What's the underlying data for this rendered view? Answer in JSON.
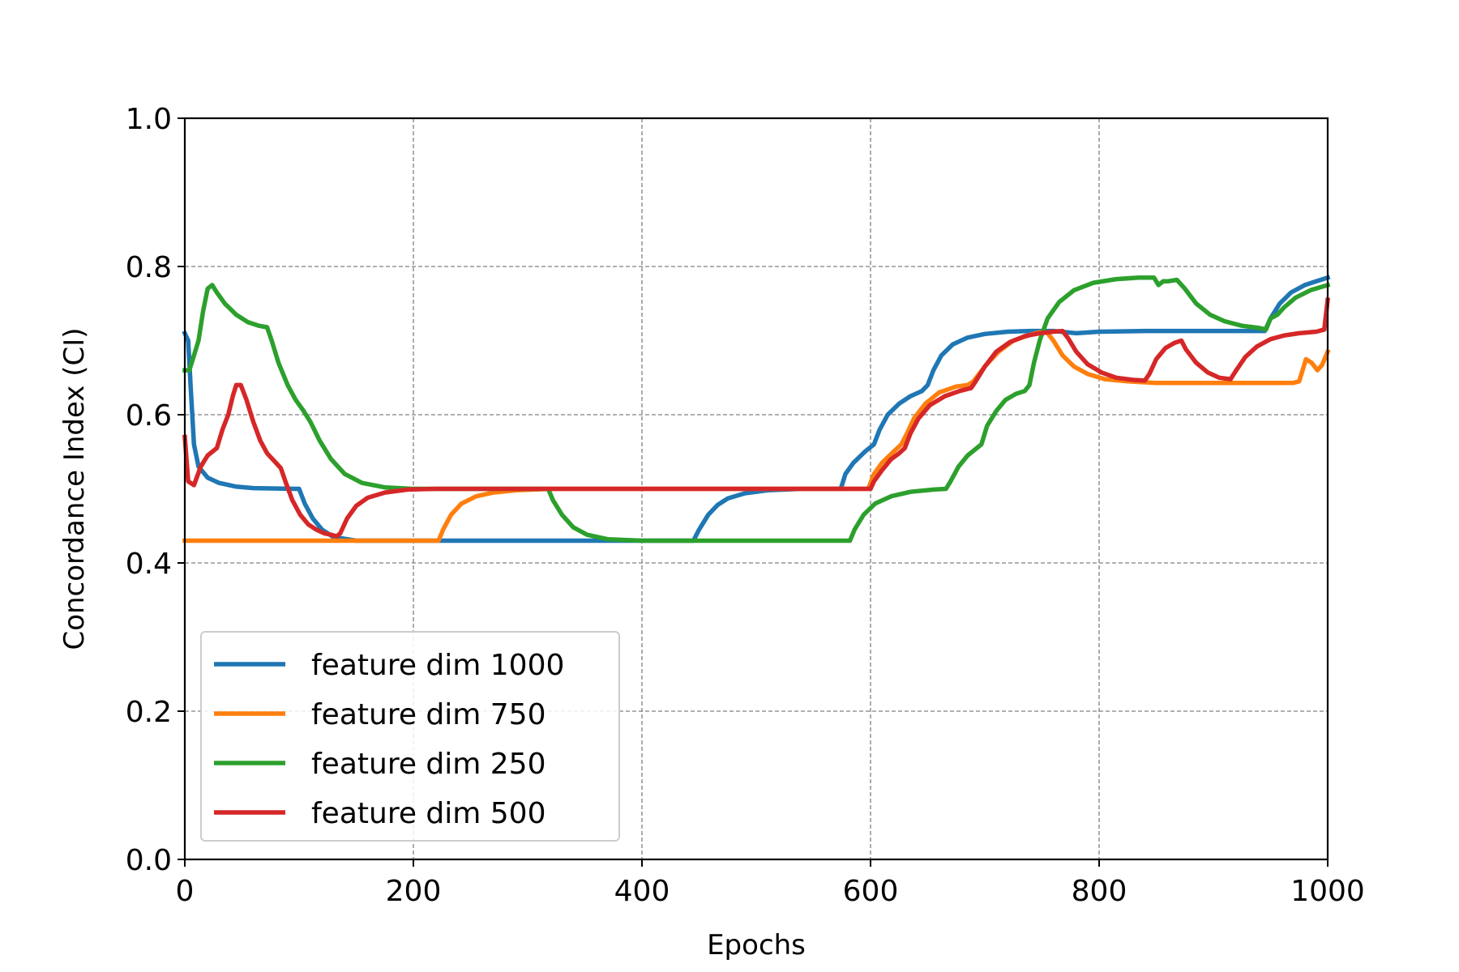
{
  "chart_data": {
    "type": "line",
    "title": "",
    "xlabel": "Epochs",
    "ylabel": "Concordance Index (CI)",
    "xlim": [
      0,
      1000
    ],
    "ylim": [
      0,
      1.0
    ],
    "xticks": [
      0,
      200,
      400,
      600,
      800,
      1000
    ],
    "xtick_labels": [
      "0",
      "200",
      "400",
      "600",
      "800",
      "1000"
    ],
    "yticks": [
      0,
      0.2,
      0.4,
      0.6,
      0.8,
      1.0
    ],
    "ytick_labels": [
      "0.0",
      "0.2",
      "0.4",
      "0.6",
      "0.8",
      "1.0"
    ],
    "grid": true,
    "legend_position": "lower-left",
    "series": [
      {
        "name": "feature dim 1000",
        "color": "#1f77b4",
        "points": [
          [
            0,
            0.71
          ],
          [
            3,
            0.7
          ],
          [
            5,
            0.64
          ],
          [
            8,
            0.56
          ],
          [
            12,
            0.53
          ],
          [
            20,
            0.515
          ],
          [
            30,
            0.508
          ],
          [
            45,
            0.503
          ],
          [
            60,
            0.501
          ],
          [
            96,
            0.5
          ],
          [
            100,
            0.5
          ],
          [
            105,
            0.48
          ],
          [
            112,
            0.46
          ],
          [
            120,
            0.445
          ],
          [
            130,
            0.435
          ],
          [
            150,
            0.43
          ],
          [
            200,
            0.43
          ],
          [
            300,
            0.43
          ],
          [
            400,
            0.43
          ],
          [
            445,
            0.43
          ],
          [
            450,
            0.445
          ],
          [
            458,
            0.465
          ],
          [
            466,
            0.478
          ],
          [
            475,
            0.487
          ],
          [
            490,
            0.494
          ],
          [
            510,
            0.498
          ],
          [
            540,
            0.5
          ],
          [
            574,
            0.5
          ],
          [
            578,
            0.52
          ],
          [
            585,
            0.535
          ],
          [
            595,
            0.55
          ],
          [
            603,
            0.56
          ],
          [
            608,
            0.58
          ],
          [
            615,
            0.6
          ],
          [
            625,
            0.615
          ],
          [
            635,
            0.625
          ],
          [
            645,
            0.632
          ],
          [
            650,
            0.64
          ],
          [
            655,
            0.66
          ],
          [
            662,
            0.68
          ],
          [
            672,
            0.695
          ],
          [
            685,
            0.704
          ],
          [
            700,
            0.709
          ],
          [
            720,
            0.712
          ],
          [
            740,
            0.713
          ],
          [
            760,
            0.713
          ],
          [
            780,
            0.71
          ],
          [
            800,
            0.712
          ],
          [
            840,
            0.713
          ],
          [
            900,
            0.713
          ],
          [
            945,
            0.713
          ],
          [
            950,
            0.73
          ],
          [
            958,
            0.75
          ],
          [
            968,
            0.765
          ],
          [
            980,
            0.775
          ],
          [
            990,
            0.78
          ],
          [
            1000,
            0.785
          ]
        ]
      },
      {
        "name": "feature dim 750",
        "color": "#ff7f0e",
        "points": [
          [
            0,
            0.43
          ],
          [
            100,
            0.43
          ],
          [
            200,
            0.43
          ],
          [
            222,
            0.43
          ],
          [
            226,
            0.445
          ],
          [
            233,
            0.465
          ],
          [
            242,
            0.48
          ],
          [
            255,
            0.49
          ],
          [
            270,
            0.495
          ],
          [
            290,
            0.498
          ],
          [
            320,
            0.5
          ],
          [
            400,
            0.5
          ],
          [
            500,
            0.5
          ],
          [
            598,
            0.5
          ],
          [
            603,
            0.52
          ],
          [
            610,
            0.535
          ],
          [
            620,
            0.55
          ],
          [
            627,
            0.56
          ],
          [
            632,
            0.575
          ],
          [
            638,
            0.595
          ],
          [
            648,
            0.615
          ],
          [
            660,
            0.63
          ],
          [
            675,
            0.638
          ],
          [
            685,
            0.64
          ],
          [
            690,
            0.645
          ],
          [
            700,
            0.665
          ],
          [
            712,
            0.685
          ],
          [
            725,
            0.7
          ],
          [
            740,
            0.708
          ],
          [
            750,
            0.712
          ],
          [
            755,
            0.71
          ],
          [
            760,
            0.7
          ],
          [
            768,
            0.68
          ],
          [
            778,
            0.665
          ],
          [
            790,
            0.655
          ],
          [
            805,
            0.648
          ],
          [
            825,
            0.645
          ],
          [
            850,
            0.643
          ],
          [
            900,
            0.643
          ],
          [
            970,
            0.643
          ],
          [
            975,
            0.645
          ],
          [
            981,
            0.675
          ],
          [
            986,
            0.67
          ],
          [
            991,
            0.66
          ],
          [
            995,
            0.667
          ],
          [
            1000,
            0.685
          ]
        ]
      },
      {
        "name": "feature dim 250",
        "color": "#2ca02c",
        "points": [
          [
            0,
            0.66
          ],
          [
            4,
            0.66
          ],
          [
            8,
            0.68
          ],
          [
            12,
            0.7
          ],
          [
            16,
            0.74
          ],
          [
            20,
            0.77
          ],
          [
            24,
            0.775
          ],
          [
            28,
            0.765
          ],
          [
            35,
            0.75
          ],
          [
            45,
            0.735
          ],
          [
            55,
            0.725
          ],
          [
            65,
            0.72
          ],
          [
            72,
            0.718
          ],
          [
            76,
            0.7
          ],
          [
            82,
            0.67
          ],
          [
            90,
            0.64
          ],
          [
            97,
            0.62
          ],
          [
            104,
            0.605
          ],
          [
            110,
            0.59
          ],
          [
            118,
            0.565
          ],
          [
            128,
            0.54
          ],
          [
            140,
            0.52
          ],
          [
            155,
            0.508
          ],
          [
            175,
            0.502
          ],
          [
            200,
            0.5
          ],
          [
            250,
            0.5
          ],
          [
            318,
            0.5
          ],
          [
            322,
            0.485
          ],
          [
            330,
            0.465
          ],
          [
            340,
            0.448
          ],
          [
            352,
            0.438
          ],
          [
            370,
            0.432
          ],
          [
            400,
            0.43
          ],
          [
            500,
            0.43
          ],
          [
            582,
            0.43
          ],
          [
            586,
            0.445
          ],
          [
            594,
            0.465
          ],
          [
            604,
            0.48
          ],
          [
            618,
            0.49
          ],
          [
            635,
            0.496
          ],
          [
            655,
            0.499
          ],
          [
            666,
            0.5
          ],
          [
            670,
            0.51
          ],
          [
            677,
            0.53
          ],
          [
            685,
            0.545
          ],
          [
            693,
            0.555
          ],
          [
            697,
            0.56
          ],
          [
            702,
            0.585
          ],
          [
            710,
            0.605
          ],
          [
            718,
            0.62
          ],
          [
            727,
            0.628
          ],
          [
            735,
            0.632
          ],
          [
            739,
            0.64
          ],
          [
            743,
            0.67
          ],
          [
            748,
            0.7
          ],
          [
            755,
            0.73
          ],
          [
            765,
            0.752
          ],
          [
            778,
            0.768
          ],
          [
            795,
            0.778
          ],
          [
            815,
            0.783
          ],
          [
            835,
            0.785
          ],
          [
            848,
            0.785
          ],
          [
            852,
            0.775
          ],
          [
            856,
            0.78
          ],
          [
            860,
            0.78
          ],
          [
            868,
            0.782
          ],
          [
            875,
            0.77
          ],
          [
            885,
            0.75
          ],
          [
            897,
            0.735
          ],
          [
            910,
            0.726
          ],
          [
            925,
            0.72
          ],
          [
            940,
            0.717
          ],
          [
            946,
            0.715
          ],
          [
            950,
            0.73
          ],
          [
            956,
            0.735
          ],
          [
            962,
            0.745
          ],
          [
            972,
            0.758
          ],
          [
            985,
            0.768
          ],
          [
            1000,
            0.775
          ]
        ]
      },
      {
        "name": "feature dim 500",
        "color": "#d62728",
        "points": [
          [
            0,
            0.57
          ],
          [
            3,
            0.51
          ],
          [
            8,
            0.505
          ],
          [
            14,
            0.53
          ],
          [
            20,
            0.545
          ],
          [
            28,
            0.555
          ],
          [
            33,
            0.58
          ],
          [
            38,
            0.6
          ],
          [
            42,
            0.625
          ],
          [
            45,
            0.64
          ],
          [
            49,
            0.64
          ],
          [
            54,
            0.62
          ],
          [
            60,
            0.59
          ],
          [
            66,
            0.565
          ],
          [
            72,
            0.548
          ],
          [
            78,
            0.538
          ],
          [
            84,
            0.528
          ],
          [
            88,
            0.51
          ],
          [
            94,
            0.485
          ],
          [
            101,
            0.465
          ],
          [
            108,
            0.452
          ],
          [
            115,
            0.445
          ],
          [
            122,
            0.44
          ],
          [
            128,
            0.438
          ],
          [
            133,
            0.436
          ],
          [
            136,
            0.44
          ],
          [
            142,
            0.46
          ],
          [
            150,
            0.477
          ],
          [
            160,
            0.488
          ],
          [
            175,
            0.495
          ],
          [
            195,
            0.499
          ],
          [
            220,
            0.5
          ],
          [
            300,
            0.5
          ],
          [
            400,
            0.5
          ],
          [
            500,
            0.5
          ],
          [
            600,
            0.5
          ],
          [
            603,
            0.51
          ],
          [
            610,
            0.525
          ],
          [
            618,
            0.54
          ],
          [
            625,
            0.548
          ],
          [
            630,
            0.555
          ],
          [
            635,
            0.575
          ],
          [
            642,
            0.595
          ],
          [
            652,
            0.613
          ],
          [
            665,
            0.625
          ],
          [
            678,
            0.632
          ],
          [
            688,
            0.636
          ],
          [
            692,
            0.645
          ],
          [
            700,
            0.665
          ],
          [
            710,
            0.685
          ],
          [
            722,
            0.698
          ],
          [
            735,
            0.706
          ],
          [
            748,
            0.71
          ],
          [
            760,
            0.712
          ],
          [
            768,
            0.713
          ],
          [
            773,
            0.703
          ],
          [
            780,
            0.685
          ],
          [
            790,
            0.668
          ],
          [
            802,
            0.657
          ],
          [
            815,
            0.65
          ],
          [
            830,
            0.647
          ],
          [
            840,
            0.646
          ],
          [
            844,
            0.655
          ],
          [
            850,
            0.675
          ],
          [
            858,
            0.69
          ],
          [
            866,
            0.697
          ],
          [
            872,
            0.7
          ],
          [
            876,
            0.688
          ],
          [
            885,
            0.67
          ],
          [
            895,
            0.657
          ],
          [
            905,
            0.65
          ],
          [
            915,
            0.648
          ],
          [
            920,
            0.66
          ],
          [
            928,
            0.678
          ],
          [
            938,
            0.692
          ],
          [
            950,
            0.702
          ],
          [
            962,
            0.707
          ],
          [
            975,
            0.71
          ],
          [
            990,
            0.712
          ],
          [
            997,
            0.715
          ],
          [
            1000,
            0.755
          ]
        ]
      }
    ]
  }
}
